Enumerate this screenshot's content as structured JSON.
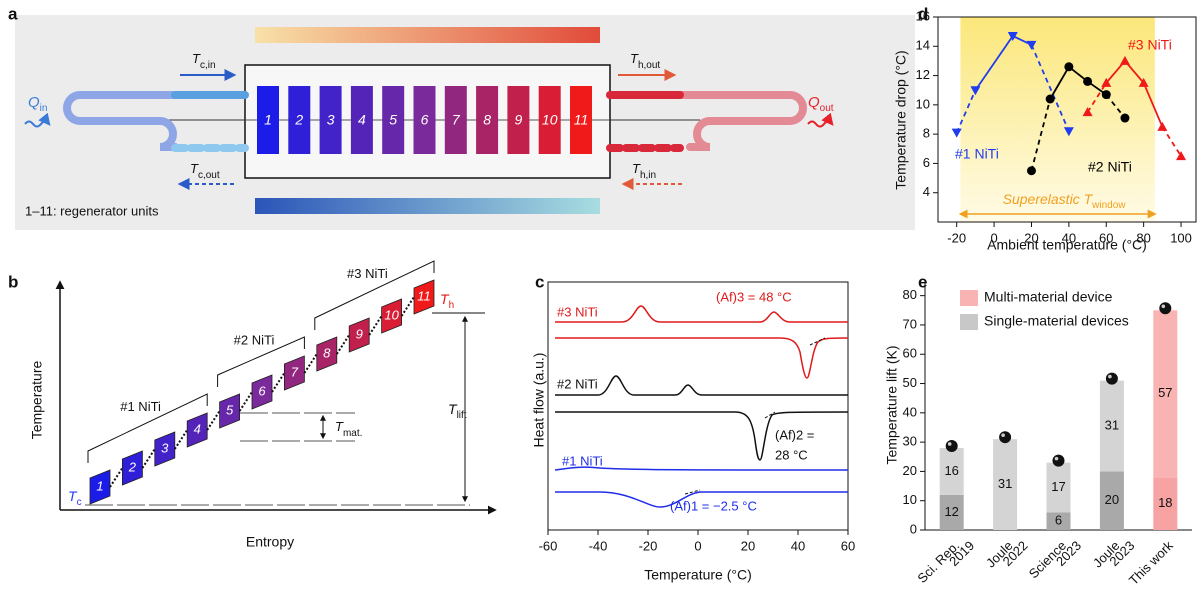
{
  "panel_labels": [
    "a",
    "b",
    "c",
    "d",
    "e"
  ],
  "panel_a": {
    "units": [
      "1",
      "2",
      "3",
      "4",
      "5",
      "6",
      "7",
      "8",
      "9",
      "10",
      "11"
    ],
    "t_c_in": {
      "main": "T",
      "sub": "c,in"
    },
    "t_c_out": {
      "main": "T",
      "sub": "c,out"
    },
    "t_h_out": {
      "main": "T",
      "sub": "h,out"
    },
    "t_h_in": {
      "main": "T",
      "sub": "h,in"
    },
    "q_in": {
      "main": "Q",
      "sub": "in"
    },
    "q_out": {
      "main": "Q",
      "sub": "out"
    },
    "caption": "1–11: regenerator units"
  },
  "panel_b": {
    "units": [
      "1",
      "2",
      "3",
      "4",
      "5",
      "6",
      "7",
      "8",
      "9",
      "10",
      "11"
    ],
    "groups": [
      "#1 NiTi",
      "#2 NiTi",
      "#3 NiTi"
    ],
    "y_label": "Temperature",
    "x_label": "Entropy",
    "t_c": {
      "main": "T",
      "sub": "c"
    },
    "t_h": {
      "main": "T",
      "sub": "h"
    },
    "t_lift": {
      "main": "T",
      "sub": "lift"
    },
    "t_mat": {
      "main": "T",
      "sub": "mat."
    }
  },
  "chart_data": [
    {
      "type": "dsc",
      "x_label": "Temperature (°C)",
      "y_label": "Heat flow (a.u.)",
      "xlim": [
        -60,
        60
      ],
      "xticks": [
        -60,
        -40,
        -20,
        0,
        20,
        40,
        60
      ],
      "curve_labels": [
        "#3 NiTi",
        "#2 NiTi",
        "#1 NiTi"
      ],
      "annotations": [
        "(Af)3 = 48 °C",
        "(Af)2 =",
        "28 °C",
        "(Af)1 = −2.5 °C"
      ]
    },
    {
      "type": "line",
      "x_label": "Ambient temperature (°C)",
      "y_label": "Temperature drop (°C)",
      "xlim": [
        -30,
        108
      ],
      "xticks": [
        -20,
        0,
        20,
        40,
        60,
        80,
        100
      ],
      "ylim": [
        2,
        16
      ],
      "yticks": [
        4,
        6,
        8,
        10,
        12,
        14,
        16
      ],
      "window": [
        -18,
        86
      ],
      "window_label": {
        "main": "Superelastic T",
        "sub": "window"
      },
      "series": [
        {
          "name": "#1 NiTi",
          "color": "#1f3cf0",
          "marker": "down",
          "x": [
            -20,
            -10,
            10,
            20,
            40
          ],
          "values": [
            8.1,
            11.0,
            14.7,
            14.1,
            8.2
          ]
        },
        {
          "name": "#2 NiTi",
          "color": "#000000",
          "marker": "circle",
          "x": [
            20,
            30,
            40,
            50,
            60,
            70
          ],
          "values": [
            5.5,
            10.4,
            12.6,
            11.6,
            10.7,
            9.1
          ]
        },
        {
          "name": "#3 NiTi",
          "color": "#f01818",
          "marker": "up",
          "x": [
            50,
            60,
            70,
            80,
            90,
            100
          ],
          "values": [
            9.5,
            11.5,
            13.0,
            11.5,
            8.5,
            6.5
          ]
        }
      ]
    },
    {
      "type": "stacked-bar",
      "y_label": "Temperature lift (K)",
      "categories": [
        [
          "Sci. Rep.",
          "2019"
        ],
        [
          "Joule",
          "2022"
        ],
        [
          "Science",
          "2023"
        ],
        [
          "Joule",
          "2023"
        ],
        [
          "This work"
        ]
      ],
      "ylim": [
        0,
        85
      ],
      "yticks": [
        0,
        10,
        20,
        30,
        40,
        50,
        60,
        70,
        80
      ],
      "series": [
        {
          "values": [
            12,
            null,
            6,
            20,
            18
          ],
          "colors": [
            "#a9a9a9",
            "#a9a9a9",
            "#a9a9a9",
            "#a9a9a9",
            "#f7a3a3"
          ]
        },
        {
          "values": [
            16,
            31,
            17,
            31,
            57
          ],
          "colors": [
            "#d4d4d4",
            "#d4d4d4",
            "#d4d4d4",
            "#d4d4d4",
            "#fab3b3"
          ]
        }
      ],
      "legend": [
        {
          "label": "Multi-material device",
          "color": "#fab3b3"
        },
        {
          "label": "Single-material devices",
          "color": "#c8c8c8"
        }
      ]
    }
  ]
}
